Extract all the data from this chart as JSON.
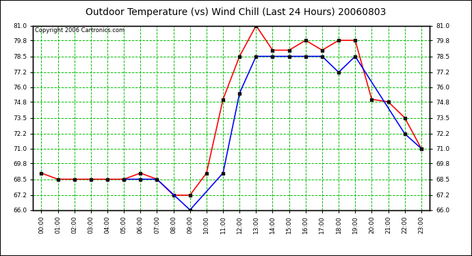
{
  "title": "Outdoor Temperature (vs) Wind Chill (Last 24 Hours) 20060803",
  "copyright": "Copyright 2006 Cartronics.com",
  "hours": [
    "00:00",
    "01:00",
    "02:00",
    "03:00",
    "04:00",
    "05:00",
    "06:00",
    "07:00",
    "08:00",
    "09:00",
    "10:00",
    "11:00",
    "12:00",
    "13:00",
    "14:00",
    "15:00",
    "16:00",
    "17:00",
    "18:00",
    "19:00",
    "20:00",
    "21:00",
    "22:00",
    "23:00"
  ],
  "temp": [
    69.0,
    68.5,
    68.5,
    68.5,
    68.5,
    68.5,
    69.0,
    68.5,
    67.2,
    67.2,
    69.0,
    75.0,
    78.5,
    81.0,
    79.0,
    79.0,
    79.8,
    79.0,
    79.8,
    79.8,
    75.0,
    74.8,
    73.5,
    71.0
  ],
  "wind_chill": [
    null,
    null,
    null,
    null,
    null,
    68.5,
    68.5,
    68.5,
    null,
    66.0,
    null,
    69.0,
    75.5,
    78.5,
    78.5,
    78.5,
    78.5,
    78.5,
    77.2,
    78.5,
    null,
    null,
    72.2,
    71.0
  ],
  "ylim_min": 66.0,
  "ylim_max": 81.0,
  "yticks": [
    66.0,
    67.2,
    68.5,
    69.8,
    71.0,
    72.2,
    73.5,
    74.8,
    76.0,
    77.2,
    78.5,
    79.8,
    81.0
  ],
  "temp_color": "#ff0000",
  "wind_chill_color": "#0000ff",
  "grid_color": "#00bb00",
  "bg_color": "#ffffff",
  "plot_bg_color": "#ffffff"
}
